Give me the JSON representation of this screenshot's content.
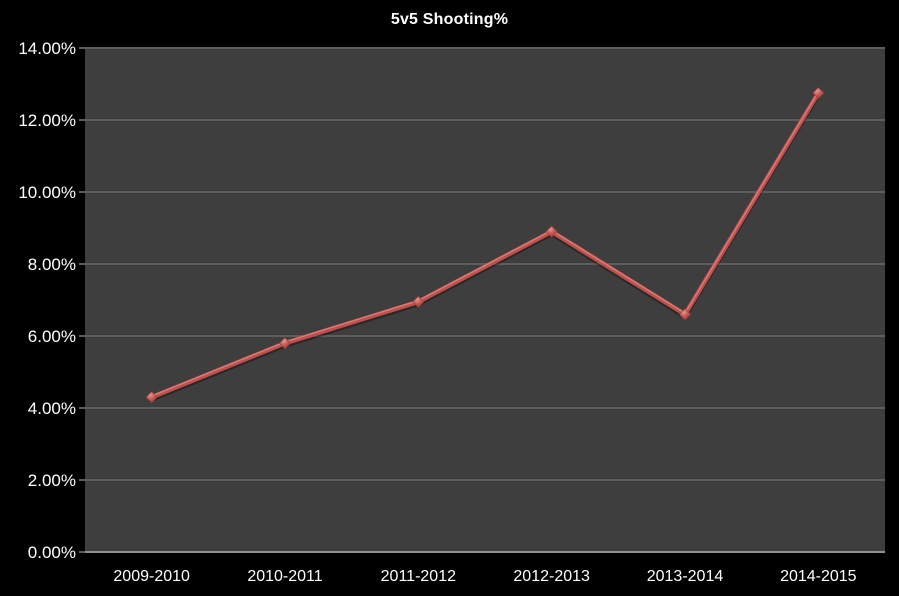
{
  "title": "5v5 Shooting%",
  "chart_data": {
    "type": "line",
    "title": "5v5 Shooting%",
    "categories": [
      "2009-2010",
      "2010-2011",
      "2011-2012",
      "2012-2013",
      "2013-2014",
      "2014-2015"
    ],
    "series": [
      {
        "name": "5v5 Shooting%",
        "values": [
          4.3,
          5.8,
          6.95,
          8.9,
          6.6,
          12.75
        ]
      }
    ],
    "xlabel": "",
    "ylabel": "",
    "ylim": [
      0,
      14
    ],
    "ytick_step": 2,
    "ytick_labels_top_to_bottom": [
      "14.00%",
      "12.00%",
      "10.00%",
      "8.00%",
      "6.00%",
      "4.00%",
      "2.00%",
      "0.00%"
    ],
    "grid": true,
    "legend_position": "none",
    "marker": "diamond",
    "colors": {
      "page_bg": "#000000",
      "plot_bg": "#3e3e3e",
      "gridline": "#5d5d5d",
      "axis_line": "#8f8f8f",
      "tick": "#7a7a7a",
      "text": "#ffffff",
      "line": "#c0504d",
      "line_highlight": "#dd837c",
      "line_shadow": "rgba(0,0,0,0.35)",
      "marker_center": "#e8968f",
      "marker_edge": "#9e403d"
    }
  }
}
